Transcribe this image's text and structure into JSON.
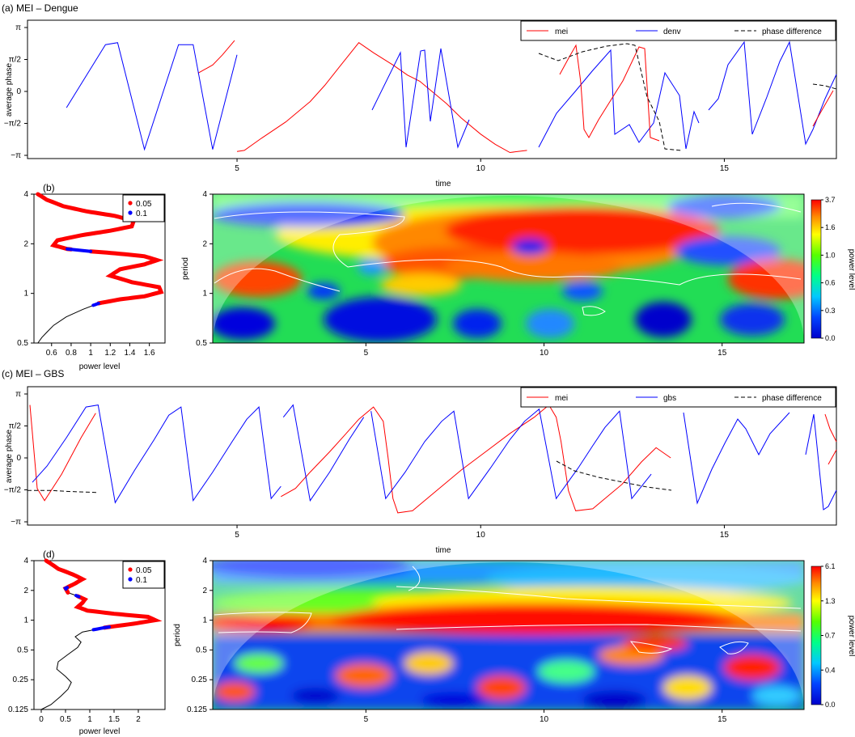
{
  "panels": {
    "a": {
      "title": "(a) MEI – Dengue"
    },
    "b": {
      "tag": "(b)"
    },
    "c": {
      "title": "(c) MEI – GBS"
    },
    "d": {
      "tag": "(d)"
    }
  },
  "colors": {
    "mei": "#ff0000",
    "series2": "#0000ff",
    "phase": "#000000",
    "signif_05": "#ff0000",
    "signif_1": "#0000ff",
    "contour": "#ffffff"
  },
  "chart_data": [
    {
      "id": "phase-dengue",
      "type": "line",
      "title": "(a) MEI – Dengue",
      "xlabel": "time",
      "ylabel": "average phase",
      "xlim": [
        0.7,
        17.3
      ],
      "ylim": [
        -3.3,
        3.5
      ],
      "xticks": [
        5,
        10,
        15
      ],
      "yticks": [
        {
          "v": 3.14159,
          "t": "π"
        },
        {
          "v": 1.5708,
          "t": "π/2"
        },
        {
          "v": 0,
          "t": "0"
        },
        {
          "v": -1.5708,
          "t": "−π/2"
        },
        {
          "v": -3.14159,
          "t": "−π"
        }
      ],
      "legend": [
        "mei",
        "denv",
        "phase difference"
      ],
      "series": [
        {
          "name": "mei",
          "color": "#ff0000",
          "dash": false,
          "segments": [
            [
              [
                4.2,
                0.9
              ],
              [
                4.5,
                1.3
              ],
              [
                4.7,
                1.8
              ],
              [
                4.95,
                2.5
              ]
            ],
            [
              [
                5.0,
                -2.95
              ],
              [
                5.15,
                -2.9
              ],
              [
                5.5,
                -2.3
              ],
              [
                6.0,
                -1.5
              ],
              [
                6.5,
                -0.5
              ],
              [
                6.8,
                0.3
              ],
              [
                7.1,
                1.2
              ],
              [
                7.4,
                2.1
              ],
              [
                7.5,
                2.4
              ],
              [
                7.8,
                1.9
              ],
              [
                8.2,
                1.3
              ],
              [
                8.5,
                0.8
              ],
              [
                8.75,
                0.5
              ],
              [
                9.0,
                0.0
              ],
              [
                9.3,
                -0.6
              ],
              [
                9.6,
                -1.3
              ],
              [
                10.0,
                -2.1
              ],
              [
                10.3,
                -2.6
              ],
              [
                10.6,
                -3.0
              ],
              [
                10.95,
                -2.9
              ]
            ]
          ]
        },
        {
          "name": "denv",
          "color": "#0000ff",
          "dash": false,
          "segments": [
            [
              [
                1.5,
                -0.8
              ],
              [
                2.3,
                2.3
              ],
              [
                2.55,
                2.4
              ],
              [
                3.1,
                -2.85
              ],
              [
                3.8,
                2.3
              ],
              [
                4.1,
                2.3
              ],
              [
                4.5,
                -2.85
              ],
              [
                5.0,
                1.8
              ]
            ]
          ]
        },
        {
          "name": "phase difference",
          "color": "#000000",
          "dash": true,
          "segments": []
        }
      ]
    },
    {
      "id": "power-dengue",
      "type": "line",
      "xlabel": "power level",
      "ylabel": "",
      "xlim": [
        0.42,
        1.76
      ],
      "ylim": [
        0.5,
        4
      ],
      "yscale": "log2",
      "xticks": [
        {
          "v": 0.6,
          "t": "0.6"
        },
        {
          "v": 0.8,
          "t": "0.8"
        },
        {
          "v": 1.0,
          "t": "1"
        },
        {
          "v": 1.2,
          "t": "1.2"
        },
        {
          "v": 1.4,
          "t": "1.4"
        },
        {
          "v": 1.6,
          "t": "1.6"
        }
      ],
      "yticks": [
        {
          "v": 0.5,
          "t": "0.5"
        },
        {
          "v": 1,
          "t": "1"
        },
        {
          "v": 2,
          "t": "2"
        },
        {
          "v": 4,
          "t": "4"
        }
      ],
      "legend": [
        "0.05",
        "0.1"
      ],
      "profile": [
        [
          0.46,
          0.5
        ],
        [
          0.5,
          0.54
        ],
        [
          0.55,
          0.58
        ],
        [
          0.62,
          0.64
        ],
        [
          0.75,
          0.72
        ],
        [
          0.92,
          0.8
        ],
        [
          1.08,
          0.87
        ],
        [
          1.3,
          0.92
        ],
        [
          1.55,
          0.96
        ],
        [
          1.72,
          1.02
        ],
        [
          1.7,
          1.09
        ],
        [
          1.42,
          1.17
        ],
        [
          1.2,
          1.28
        ],
        [
          1.3,
          1.4
        ],
        [
          1.55,
          1.5
        ],
        [
          1.68,
          1.59
        ],
        [
          1.55,
          1.68
        ],
        [
          1.25,
          1.75
        ],
        [
          1.0,
          1.8
        ],
        [
          0.76,
          1.86
        ],
        [
          0.62,
          1.96
        ],
        [
          0.66,
          2.1
        ],
        [
          0.9,
          2.25
        ],
        [
          1.2,
          2.4
        ],
        [
          1.42,
          2.55
        ],
        [
          1.44,
          2.75
        ],
        [
          1.25,
          2.95
        ],
        [
          0.95,
          3.15
        ],
        [
          0.72,
          3.38
        ],
        [
          0.55,
          3.7
        ],
        [
          0.46,
          4.0
        ]
      ],
      "signif_05": [
        [
          0.87,
          1.8
        ],
        [
          1.85,
          4.0
        ]
      ],
      "signif_1": [
        [
          0.84,
          0.87
        ],
        [
          1.8,
          1.87
        ]
      ]
    },
    {
      "id": "wavelet-dengue",
      "type": "heatmap",
      "xlabel": "",
      "ylabel": "period",
      "xlim": [
        0.7,
        17.3
      ],
      "ylim": [
        0.5,
        4
      ],
      "yscale": "log2",
      "xticks": [
        5,
        10,
        15
      ],
      "yticks": [
        {
          "v": 0.5,
          "t": "0.5"
        },
        {
          "v": 1,
          "t": "1"
        },
        {
          "v": 2,
          "t": "2"
        },
        {
          "v": 4,
          "t": "4"
        }
      ],
      "colorbar_label": "power level",
      "colorbar_ticks": [
        "3.7",
        "1.6",
        "1.0",
        "0.6",
        "0.3",
        "0.0"
      ],
      "coi_half_width": 8.3,
      "coi_center": 9.0
    },
    {
      "id": "phase-gbs",
      "type": "line",
      "title": "(c) MEI – GBS",
      "xlabel": "time",
      "ylabel": "average phase",
      "xlim": [
        0.7,
        17.3
      ],
      "ylim": [
        -3.3,
        3.5
      ],
      "xticks": [
        5,
        10,
        15
      ],
      "yticks": [
        {
          "v": 3.14159,
          "t": "π"
        },
        {
          "v": 1.5708,
          "t": "π/2"
        },
        {
          "v": 0,
          "t": "0"
        },
        {
          "v": -1.5708,
          "t": "−π/2"
        },
        {
          "v": -3.14159,
          "t": "−π"
        }
      ],
      "legend": [
        "mei",
        "gbs",
        "phase difference"
      ],
      "series": [
        {
          "name": "mei",
          "color": "#ff0000",
          "dash": false,
          "segments": [
            [
              [
                0.75,
                2.6
              ],
              [
                0.9,
                -1.5
              ],
              [
                1.05,
                -2.1
              ],
              [
                1.4,
                -0.8
              ],
              [
                1.8,
                1.0
              ],
              [
                2.1,
                2.2
              ]
            ],
            [
              [
                5.9,
                -1.9
              ],
              [
                6.2,
                -1.5
              ],
              [
                6.5,
                -0.7
              ],
              [
                6.9,
                0.3
              ],
              [
                7.2,
                1.1
              ],
              [
                7.5,
                1.9
              ],
              [
                7.8,
                2.5
              ],
              [
                8.0,
                1.8
              ],
              [
                8.1,
                0.0
              ],
              [
                8.2,
                -2.0
              ],
              [
                8.3,
                -2.7
              ],
              [
                8.6,
                -2.6
              ],
              [
                9.1,
                -1.6
              ],
              [
                9.6,
                -0.6
              ],
              [
                10.1,
                0.3
              ],
              [
                10.6,
                1.2
              ],
              [
                11.1,
                2.0
              ],
              [
                11.4,
                2.6
              ],
              [
                11.55,
                2.0
              ],
              [
                11.65,
                0.8
              ],
              [
                11.8,
                -1.6
              ],
              [
                11.95,
                -2.6
              ],
              [
                12.3,
                -2.5
              ],
              [
                12.9,
                -1.3
              ],
              [
                13.3,
                -0.2
              ],
              [
                13.6,
                0.5
              ],
              [
                13.9,
                0.0
              ]
            ]
          ]
        },
        {
          "name": "gbs",
          "color": "#0000ff",
          "dash": false,
          "segments": [
            [
              [
                0.8,
                -1.2
              ],
              [
                1.1,
                -0.4
              ],
              [
                1.5,
                1.0
              ],
              [
                1.9,
                2.5
              ],
              [
                2.15,
                2.6
              ],
              [
                2.5,
                -2.2
              ],
              [
                2.9,
                -0.6
              ],
              [
                3.3,
                0.9
              ],
              [
                3.6,
                2.1
              ],
              [
                3.85,
                2.5
              ],
              [
                4.1,
                -2.1
              ],
              [
                4.5,
                -0.7
              ],
              [
                4.9,
                0.8
              ],
              [
                5.2,
                1.9
              ],
              [
                5.45,
                2.5
              ],
              [
                5.7,
                -2.0
              ],
              [
                5.9,
                -1.4
              ]
            ],
            [
              [
                5.95,
                2.0
              ],
              [
                6.15,
                2.6
              ],
              [
                6.5,
                -2.1
              ],
              [
                6.9,
                -0.7
              ],
              [
                7.3,
                0.9
              ],
              [
                7.6,
                2.0
              ]
            ],
            [
              [
                7.75,
                2.3
              ],
              [
                8.05,
                -2.0
              ],
              [
                8.45,
                -0.7
              ],
              [
                8.85,
                0.8
              ],
              [
                9.2,
                1.8
              ],
              [
                9.45,
                2.3
              ],
              [
                9.75,
                -2.0
              ],
              [
                10.2,
                -0.5
              ],
              [
                10.6,
                0.9
              ],
              [
                10.9,
                1.8
              ],
              [
                11.2,
                2.4
              ],
              [
                11.55,
                -2.0
              ],
              [
                12.0,
                -0.5
              ],
              [
                12.3,
                0.6
              ],
              [
                12.55,
                1.5
              ],
              [
                12.85,
                2.3
              ],
              [
                13.1,
                -2.0
              ],
              [
                13.5,
                -0.8
              ]
            ]
          ]
        },
        {
          "name": "phase difference",
          "color": "#000000",
          "dash": true,
          "segments": [
            [
              [
                0.7,
                -1.6
              ],
              [
                1.2,
                -1.6
              ],
              [
                1.55,
                -1.65
              ],
              [
                2.15,
                -1.7
              ]
            ]
          ]
        }
      ]
    },
    {
      "id": "power-gbs",
      "type": "line",
      "xlabel": "power level",
      "ylabel": "",
      "xlim": [
        -0.15,
        2.55
      ],
      "ylim": [
        0.125,
        4
      ],
      "yscale": "log2",
      "xticks": [
        {
          "v": 0,
          "t": "0"
        },
        {
          "v": 0.5,
          "t": "0.5"
        },
        {
          "v": 1.0,
          "t": "1"
        },
        {
          "v": 1.5,
          "t": "1.5"
        },
        {
          "v": 2.0,
          "t": "2"
        }
      ],
      "yticks": [
        {
          "v": 0.125,
          "t": "0.125"
        },
        {
          "v": 0.25,
          "t": "0.25"
        },
        {
          "v": 0.5,
          "t": "0.5"
        },
        {
          "v": 1,
          "t": "1"
        },
        {
          "v": 2,
          "t": "2"
        },
        {
          "v": 4,
          "t": "4"
        }
      ],
      "legend": [
        "0.05",
        "0.1"
      ],
      "profile": [
        [
          0.0,
          0.125
        ],
        [
          0.2,
          0.14
        ],
        [
          0.4,
          0.17
        ],
        [
          0.55,
          0.2
        ],
        [
          0.62,
          0.235
        ],
        [
          0.5,
          0.27
        ],
        [
          0.32,
          0.32
        ],
        [
          0.35,
          0.38
        ],
        [
          0.55,
          0.45
        ],
        [
          0.75,
          0.53
        ],
        [
          0.82,
          0.6
        ],
        [
          0.7,
          0.68
        ],
        [
          0.85,
          0.76
        ],
        [
          1.3,
          0.84
        ],
        [
          1.9,
          0.92
        ],
        [
          2.35,
          1.0
        ],
        [
          2.2,
          1.08
        ],
        [
          1.5,
          1.16
        ],
        [
          0.95,
          1.25
        ],
        [
          0.75,
          1.36
        ],
        [
          0.85,
          1.5
        ],
        [
          0.9,
          1.62
        ],
        [
          0.75,
          1.75
        ],
        [
          0.55,
          1.9
        ],
        [
          0.5,
          2.1
        ],
        [
          0.7,
          2.35
        ],
        [
          0.85,
          2.6
        ],
        [
          0.65,
          2.9
        ],
        [
          0.35,
          3.3
        ],
        [
          0.1,
          4.0
        ]
      ],
      "signif_05": [
        [
          0.84,
          1.75
        ],
        [
          1.9,
          4.0
        ]
      ],
      "signif_1": [
        [
          0.8,
          0.86
        ],
        [
          1.72,
          1.78
        ],
        [
          2.05,
          2.15
        ]
      ]
    },
    {
      "id": "wavelet-gbs",
      "type": "heatmap",
      "xlabel": "",
      "ylabel": "period",
      "xlim": [
        0.7,
        17.3
      ],
      "ylim": [
        0.125,
        4
      ],
      "yscale": "log2",
      "xticks": [
        5,
        10,
        15
      ],
      "yticks": [
        {
          "v": 0.125,
          "t": "0.125"
        },
        {
          "v": 0.25,
          "t": "0.25"
        },
        {
          "v": 0.5,
          "t": "0.5"
        },
        {
          "v": 1,
          "t": "1"
        },
        {
          "v": 2,
          "t": "2"
        },
        {
          "v": 4,
          "t": "4"
        }
      ],
      "colorbar_label": "power level",
      "colorbar_ticks": [
        "6.1",
        "1.3",
        "0.7",
        "0.4",
        "0.0"
      ],
      "coi_half_width": 8.3,
      "coi_center": 9.0
    }
  ]
}
